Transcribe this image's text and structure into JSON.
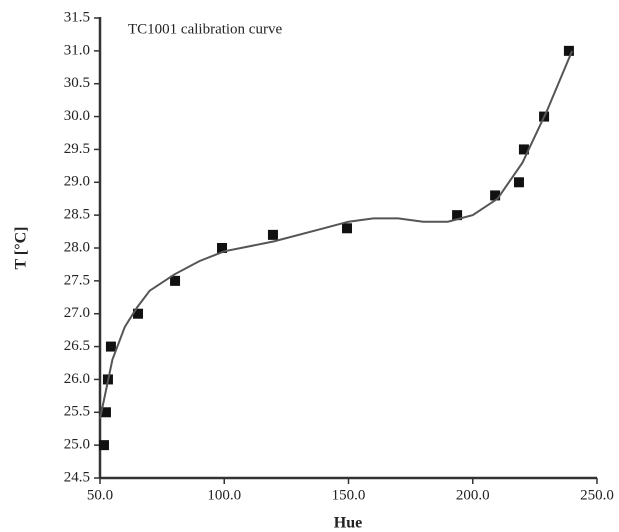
{
  "chart_data": {
    "type": "scatter",
    "title": "TC1001 calibration curve",
    "x_label": "Hue",
    "y_label": "T [°C]",
    "xlim": [
      50,
      250
    ],
    "ylim": [
      24.5,
      31.5
    ],
    "xticks": [
      {
        "value": 50,
        "label": "50.0"
      },
      {
        "value": 100,
        "label": "100.0"
      },
      {
        "value": 150,
        "label": "150.0"
      },
      {
        "value": 200,
        "label": "200.0"
      },
      {
        "value": 250,
        "label": "250.0"
      }
    ],
    "yticks": [
      24.5,
      {
        "value": 25,
        "label": "25.0"
      },
      25.5,
      {
        "value": 26,
        "label": "26.0"
      },
      26.5,
      {
        "value": 27,
        "label": "27.0"
      },
      27.5,
      {
        "value": 28,
        "label": "28.0"
      },
      28.5,
      {
        "value": 29,
        "label": "29.0"
      },
      29.5,
      {
        "value": 30,
        "label": "30.0"
      },
      30.5,
      {
        "value": 31,
        "label": "31.0"
      },
      31.5
    ],
    "series": [
      {
        "color": "#111111",
        "marker": "square",
        "x": [
          51.6,
          52.4,
          53.2,
          54.4,
          65.3,
          80.2,
          99.1,
          119.6,
          149.4,
          193.7,
          209,
          218.6,
          220.6,
          228.7,
          238.7
        ],
        "values": [
          25.0,
          25.5,
          26.0,
          26.5,
          27.0,
          27.5,
          28.0,
          28.2,
          28.3,
          28.5,
          28.8,
          29.0,
          29.5,
          30.0,
          31.0
        ]
      },
      {
        "color": "#555555",
        "marker": "line",
        "x": [
          50,
          55,
          60,
          65,
          70,
          80,
          90,
          100,
          120,
          140,
          150,
          160,
          170,
          180,
          190,
          200,
          210,
          220,
          230,
          240
        ],
        "values": [
          25.4,
          26.3,
          26.8,
          27.1,
          27.35,
          27.6,
          27.8,
          27.95,
          28.1,
          28.3,
          28.4,
          28.45,
          28.45,
          28.4,
          28.4,
          28.5,
          28.75,
          29.3,
          30.1,
          31.0
        ]
      }
    ]
  }
}
